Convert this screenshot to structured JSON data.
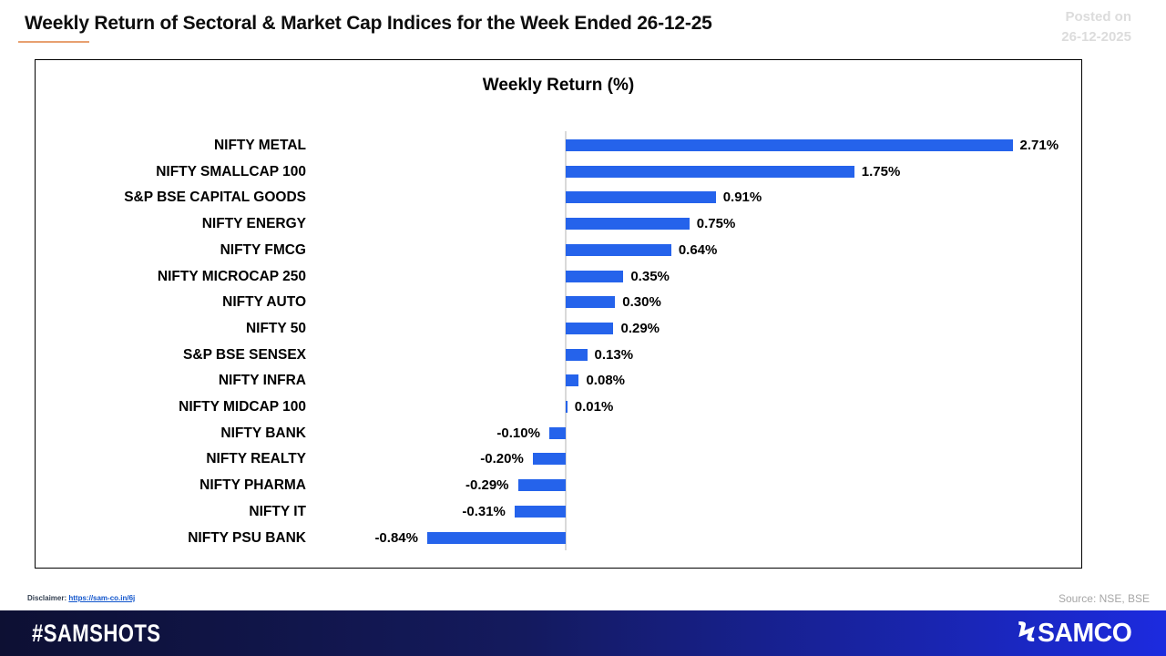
{
  "header": {
    "title": "Weekly Return of Sectoral & Market Cap Indices for the Week Ended 26-12-25",
    "posted_on_label": "Posted on",
    "posted_on_date": "26-12-2025"
  },
  "chart_data": {
    "type": "bar",
    "orientation": "horizontal",
    "title": "Weekly Return (%)",
    "categories": [
      "NIFTY METAL",
      "NIFTY SMALLCAP 100",
      "S&P BSE CAPITAL GOODS",
      "NIFTY ENERGY",
      "NIFTY FMCG",
      "NIFTY MICROCAP 250",
      "NIFTY AUTO",
      "NIFTY 50",
      "S&P BSE SENSEX",
      "NIFTY INFRA",
      "NIFTY MIDCAP 100",
      "NIFTY BANK",
      "NIFTY REALTY",
      "NIFTY PHARMA",
      "NIFTY IT",
      "NIFTY PSU BANK"
    ],
    "values": [
      2.71,
      1.75,
      0.91,
      0.75,
      0.64,
      0.35,
      0.3,
      0.29,
      0.13,
      0.08,
      0.01,
      -0.1,
      -0.2,
      -0.29,
      -0.31,
      -0.84
    ],
    "value_labels": [
      "2.71%",
      "1.75%",
      "0.91%",
      "0.75%",
      "0.64%",
      "0.35%",
      "0.30%",
      "0.29%",
      "0.13%",
      "0.08%",
      "0.01%",
      "-0.10%",
      "-0.20%",
      "-0.29%",
      "-0.31%",
      "-0.84%"
    ],
    "bar_color": "#2563EB",
    "axis_color": "#D9D9D9",
    "xlim": [
      -1.0,
      3.1
    ],
    "grid": false,
    "legend": false,
    "data_labels": true
  },
  "footer": {
    "disclaimer_label": "Disclaimer:",
    "disclaimer_link": "https://sam-co.in/6j",
    "source": "Source: NSE, BSE",
    "brand_hashtag": "#SAMSHOTS",
    "brand_mark_glyph": "Ϟ",
    "brand_name": "SAMCO"
  },
  "colors": {
    "title_underline": "#E8A070",
    "footer_gradient_start": "#0D1033",
    "footer_gradient_end": "#1C2BDF",
    "posted_on_text": "#DCDCDC",
    "source_text": "#A6A6A6"
  }
}
